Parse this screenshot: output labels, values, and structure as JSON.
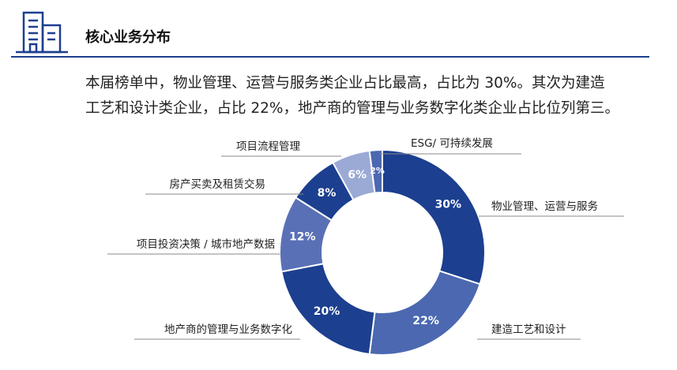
{
  "header": {
    "title": "核心业务分布"
  },
  "paragraph": [
    "本届榜单中，物业管理、运营与服务类企业占比最高，占比为 30%。其次为建造",
    "工艺和设计类企业，占比 22%，地产商的管理与业务数字化类企业占比位列第三。"
  ],
  "chart_data": {
    "type": "pie",
    "donut": true,
    "categories": [
      "物业管理、运营与服务",
      "建造工艺和设计",
      "地产商的管理与业务数字化",
      "项目投资决策 / 城市地产数据",
      "房产买卖及租赁交易",
      "项目流程管理",
      "ESG/ 可持续发展"
    ],
    "values": [
      30,
      22,
      20,
      12,
      8,
      6,
      2
    ],
    "value_labels": [
      "30%",
      "22%",
      "20%",
      "12%",
      "8%",
      "6%",
      "2%"
    ],
    "colors": [
      "#1c3f8f",
      "#4b68b1",
      "#1c3f8f",
      "#5a70b6",
      "#1c3f8f",
      "#9ba9d5",
      "#4b68b1"
    ]
  }
}
